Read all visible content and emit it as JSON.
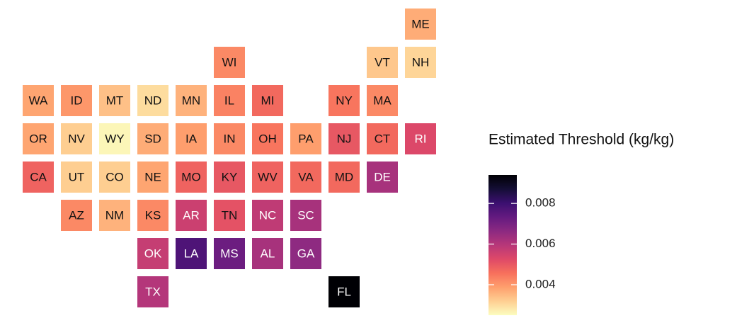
{
  "chart_data": {
    "type": "tile-map",
    "legend_title": "Estimated Threshold (kg/kg)",
    "colorscale": "magma",
    "reverse_scale": true,
    "clim": [
      0.0025,
      0.0094
    ],
    "cticks": [
      0.004,
      0.006,
      0.008
    ],
    "categories": [
      "ME",
      "WI",
      "VT",
      "NH",
      "WA",
      "ID",
      "MT",
      "ND",
      "MN",
      "IL",
      "MI",
      "NY",
      "MA",
      "OR",
      "NV",
      "WY",
      "SD",
      "IA",
      "IN",
      "OH",
      "PA",
      "NJ",
      "CT",
      "RI",
      "CA",
      "UT",
      "CO",
      "NE",
      "MO",
      "KY",
      "WV",
      "VA",
      "MD",
      "DE",
      "AZ",
      "NM",
      "KS",
      "AR",
      "TN",
      "NC",
      "SC",
      "OK",
      "LA",
      "MS",
      "AL",
      "GA",
      "TX",
      "FL"
    ],
    "values": [
      0.0037,
      0.0042,
      0.0033,
      0.0031,
      0.0038,
      0.004,
      0.0034,
      0.003,
      0.0036,
      0.0043,
      0.0047,
      0.0045,
      0.0042,
      0.0038,
      0.0032,
      0.0026,
      0.0037,
      0.0039,
      0.0042,
      0.0045,
      0.0039,
      0.005,
      0.0047,
      0.0053,
      0.0048,
      0.0032,
      0.0032,
      0.0038,
      0.0048,
      0.005,
      0.0048,
      0.0047,
      0.0047,
      0.0062,
      0.0042,
      0.0036,
      0.0042,
      0.0056,
      0.0051,
      0.0058,
      0.0062,
      0.0057,
      0.0077,
      0.0072,
      0.0062,
      0.0066,
      0.006,
      0.0094
    ]
  }
}
